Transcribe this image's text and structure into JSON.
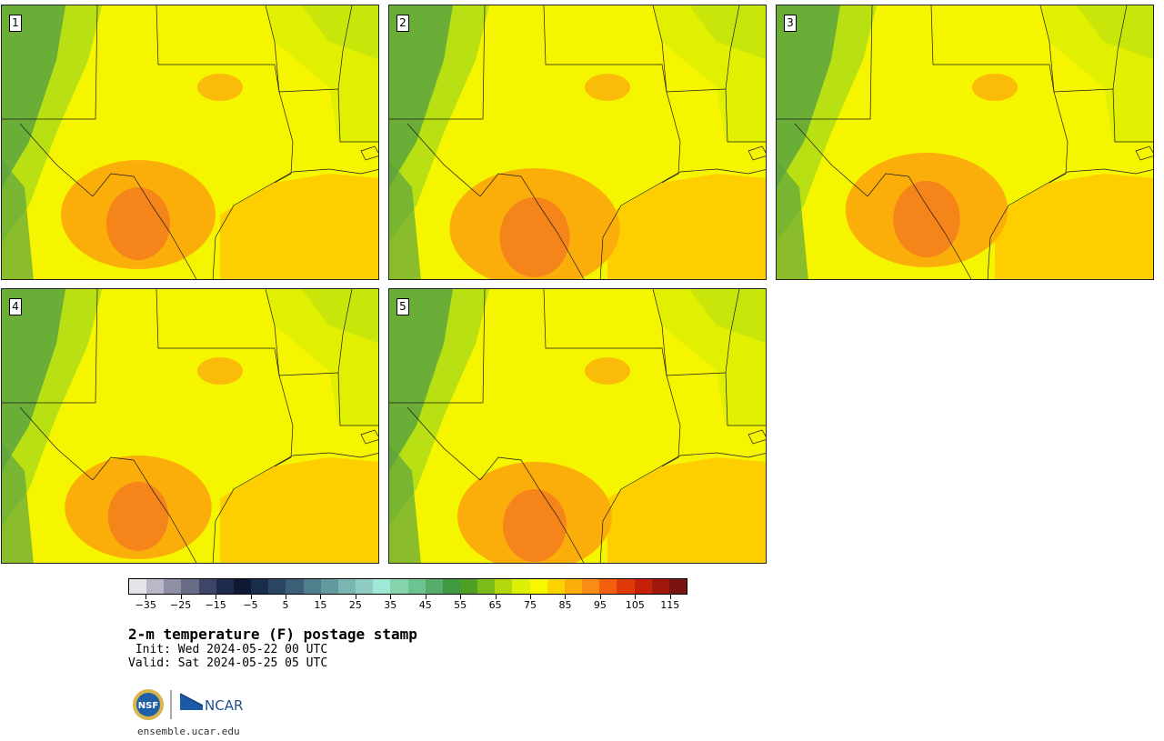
{
  "title": "2-m temperature (F) postage stamp",
  "init": " Init: Wed 2024-05-22 00 UTC",
  "valid": "Valid: Sat 2024-05-25 05 UTC",
  "website": "ensemble.ucar.edu",
  "logos": {
    "nsf": "NSF",
    "ncar": "NCAR"
  },
  "members": [
    "1",
    "2",
    "3",
    "4",
    "5"
  ],
  "colorbar": {
    "tick_labels": [
      "−35",
      "−25",
      "−15",
      "−5",
      "5",
      "15",
      "25",
      "35",
      "45",
      "55",
      "65",
      "75",
      "85",
      "95",
      "105",
      "115"
    ],
    "tick_values": [
      -35,
      -25,
      -15,
      -5,
      5,
      15,
      25,
      35,
      45,
      55,
      65,
      75,
      85,
      95,
      105,
      115
    ],
    "range": [
      -40,
      120
    ],
    "step": 5,
    "colors": [
      "#e6e6ea",
      "#b8b8c8",
      "#9090a4",
      "#6a6d88",
      "#3e4668",
      "#1e2b4a",
      "#0e1a33",
      "#1a2d4a",
      "#2b4565",
      "#3c5f78",
      "#4f7f8c",
      "#62999f",
      "#79b6b2",
      "#8fcdc4",
      "#9fe8d8",
      "#86d4ac",
      "#6cc392",
      "#56ad6a",
      "#3f9842",
      "#4f9e26",
      "#7dbb1a",
      "#b2d70d",
      "#dcef05",
      "#f7f700",
      "#fcd400",
      "#fbae0a",
      "#fa8c14",
      "#f25f0f",
      "#e03a08",
      "#c42107",
      "#a0180c",
      "#7a140f"
    ]
  },
  "map_colors": {
    "ocean": "#ffce00",
    "land_warm": "#f5f500",
    "land_cool": "#e1f000",
    "green": "#b9e012",
    "dark_green": "#5ca43f",
    "orange": "#fbae0a",
    "hot": "#f5841a",
    "border": "#1a1a1a"
  }
}
